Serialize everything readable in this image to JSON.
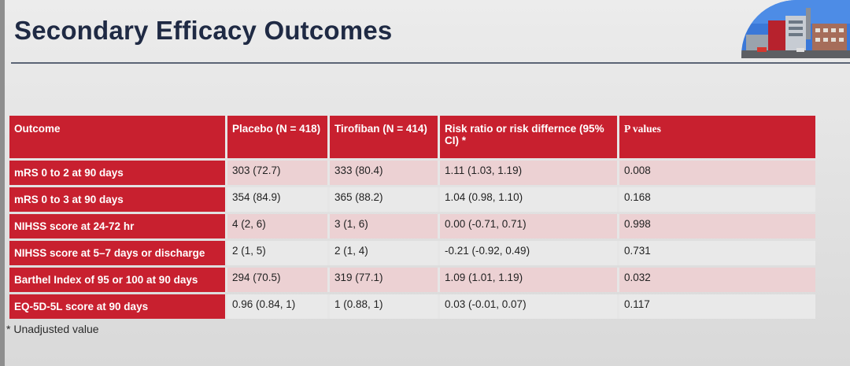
{
  "slide": {
    "title": "Secondary Efficacy Outcomes",
    "footnote": "* Unadjusted value"
  },
  "table": {
    "headers": [
      "Outcome",
      "Placebo (N = 418)",
      "Tirofiban (N = 414)",
      "Risk ratio or risk differnce (95% CI) *",
      "P values"
    ],
    "rows": [
      [
        "mRS 0 to 2 at 90 days",
        "303 (72.7)",
        "333 (80.4)",
        "1.11 (1.03, 1.19)",
        "0.008"
      ],
      [
        "mRS 0 to 3 at 90 days",
        "354 (84.9)",
        "365 (88.2)",
        "1.04 (0.98, 1.10)",
        "0.168"
      ],
      [
        "NIHSS score at 24-72 hr",
        "4 (2, 6)",
        "3 (1, 6)",
        "0.00 (-0.71, 0.71)",
        "0.998"
      ],
      [
        "NIHSS score at 5–7 days or discharge",
        "2 (1, 5)",
        "2 (1, 4)",
        "-0.21 (-0.92, 0.49)",
        "0.731"
      ],
      [
        "Barthel Index of 95 or 100 at 90 days",
        "294 (70.5)",
        "319 (77.1)",
        "1.09 (1.01, 1.19)",
        "0.032"
      ],
      [
        "EQ-5D-5L score at 90 days",
        "0.96 (0.84, 1)",
        "1 (0.88, 1)",
        "0.03 (-0.01, 0.07)",
        "0.117"
      ]
    ]
  },
  "colors": {
    "header_red": "#c8202f",
    "title_navy": "#1f2a44",
    "row_pink": "#ecd1d3",
    "row_gray": "#e9e9e9"
  },
  "icons": {
    "corner_photo": "building-photo"
  }
}
